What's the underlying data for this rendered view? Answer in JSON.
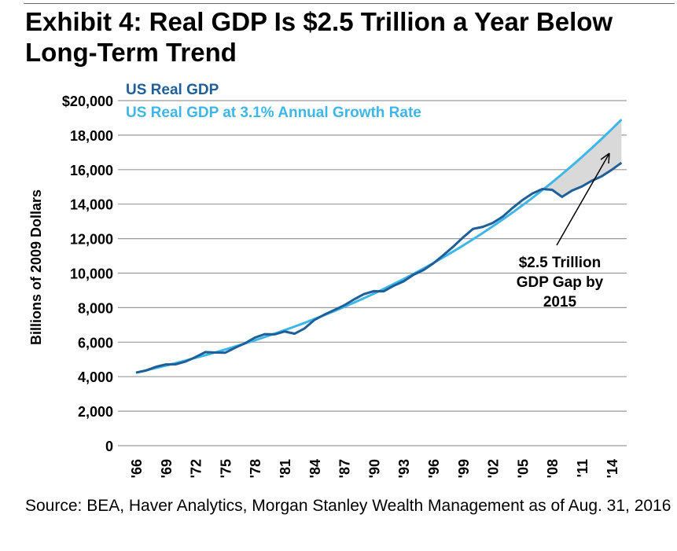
{
  "title": "Exhibit 4: Real GDP Is $2.5 Trillion a Year Below Long-Term Trend",
  "source": "Source: BEA, Haver Analytics, Morgan Stanley Wealth Management as of Aug. 31, 2016",
  "chart_data": {
    "type": "line",
    "title": "Exhibit 4: Real GDP Is $2.5 Trillion a Year Below Long-Term Trend",
    "ylabel": "Billions of 2009 Dollars",
    "xlabel": "",
    "ylim": [
      0,
      20000
    ],
    "yticks": [
      "0",
      "2,000",
      "4,000",
      "6,000",
      "8,000",
      "10,000",
      "12,000",
      "14,000",
      "16,000",
      "18,000",
      "$20,000"
    ],
    "xticks": [
      "'66",
      "'69",
      "'72",
      "'75",
      "'78",
      "'81",
      "'84",
      "'87",
      "'90",
      "'93",
      "'96",
      "'99",
      "'02",
      "'05",
      "'08",
      "'11",
      "'14"
    ],
    "grid": true,
    "legend_placement": "top-left",
    "x": [
      1966,
      1967,
      1968,
      1969,
      1970,
      1971,
      1972,
      1973,
      1974,
      1975,
      1976,
      1977,
      1978,
      1979,
      1980,
      1981,
      1982,
      1983,
      1984,
      1985,
      1986,
      1987,
      1988,
      1989,
      1990,
      1991,
      1992,
      1993,
      1994,
      1995,
      1996,
      1997,
      1998,
      1999,
      2000,
      2001,
      2002,
      2003,
      2004,
      2005,
      2006,
      2007,
      2008,
      2009,
      2010,
      2011,
      2012,
      2013,
      2014,
      2015
    ],
    "series": [
      {
        "name": "US Real GDP",
        "color": "#1f5f99",
        "values": [
          4235,
          4355,
          4570,
          4710,
          4717,
          4874,
          5134,
          5424,
          5397,
          5385,
          5675,
          5937,
          6267,
          6466,
          6450,
          6618,
          6491,
          6792,
          7285,
          7594,
          7861,
          8133,
          8475,
          8786,
          8955,
          8948,
          9267,
          9521,
          9905,
          10175,
          10561,
          11035,
          11526,
          12066,
          12560,
          12682,
          12909,
          13271,
          13774,
          14234,
          14614,
          14874,
          14830,
          14419,
          14784,
          15021,
          15355,
          15612,
          15982,
          16397
        ]
      },
      {
        "name": "US Real GDP at 3.1% Annual Growth Rate",
        "color": "#3fb6e8",
        "growth_rate": 0.031,
        "start_value": 4235
      }
    ],
    "shaded_gap": {
      "from": 2007,
      "to": 2015,
      "color": "#d9d9d9"
    },
    "annotation": {
      "lines": [
        "$2.5 Trillion",
        "GDP Gap by",
        "2015"
      ]
    }
  }
}
